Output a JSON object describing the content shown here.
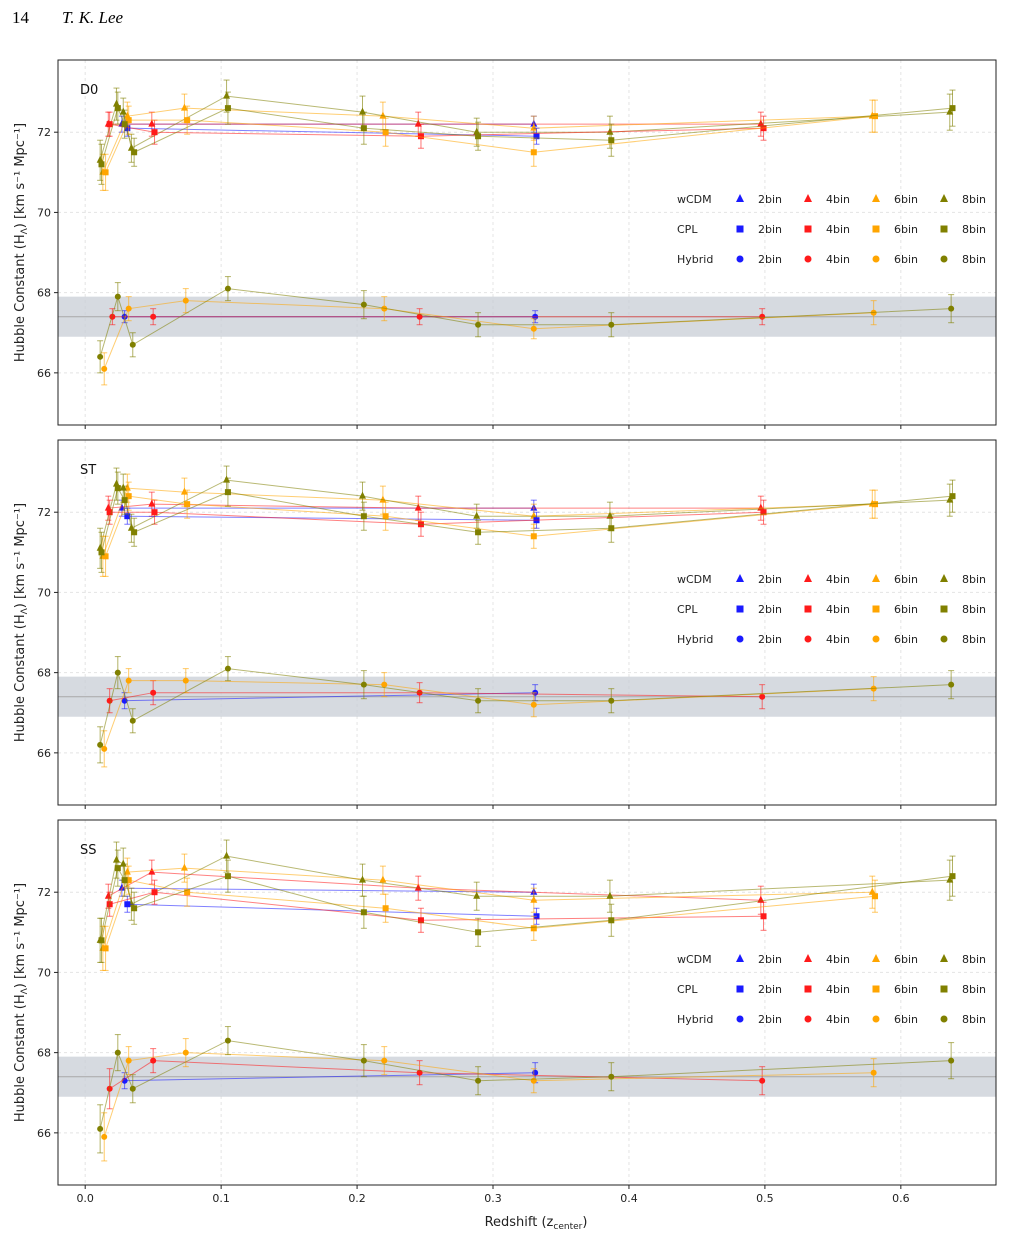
{
  "header": {
    "page_number": "14",
    "author": "T. K. Lee"
  },
  "chart_data": {
    "type": "scatter",
    "xlabel": "Redshift (z",
    "xlabel_sub": "center",
    "xlabel_end": ")",
    "ylabel": "Hubble Constant (H",
    "ylabel_sub": "Λ",
    "ylabel_end": ") [km s⁻¹ Mpc⁻¹]",
    "xlim": [
      -0.02,
      0.67
    ],
    "ylim": [
      64.7,
      73.8
    ],
    "xticks": [
      0.0,
      0.1,
      0.2,
      0.3,
      0.4,
      0.5,
      0.6
    ],
    "xtick_labels": [
      "0.0",
      "0.1",
      "0.2",
      "0.3",
      "0.4",
      "0.5",
      "0.6"
    ],
    "yticks": [
      66,
      68,
      70,
      72
    ],
    "ytick_labels": [
      "66",
      "68",
      "70",
      "72"
    ],
    "grid": true,
    "reference_band": [
      66.9,
      67.9
    ],
    "reference_line": 67.4,
    "colors": {
      "2bin": "#1a1aff",
      "4bin": "#ff1a1a",
      "6bin": "#ffa500",
      "8bin": "#808000",
      "band": "#c8ced6",
      "ref_line": "#a8a8a8"
    },
    "legend": {
      "placement": "right",
      "rows": [
        {
          "model": "wCDM",
          "marker": "triangle"
        },
        {
          "model": "CPL",
          "marker": "square"
        },
        {
          "model": "Hybrid",
          "marker": "circle"
        }
      ],
      "bins": [
        "2bin",
        "4bin",
        "6bin",
        "8bin"
      ]
    },
    "panels": [
      {
        "label": "D0",
        "series": [
          {
            "model": "wCDM",
            "bin": "2bin",
            "x": [
              0.027,
              0.33
            ],
            "y": [
              72.2,
              72.2
            ],
            "err": [
              0.2,
              0.2
            ]
          },
          {
            "model": "wCDM",
            "bin": "4bin",
            "x": [
              0.017,
              0.049,
              0.245,
              0.497
            ],
            "y": [
              72.2,
              72.2,
              72.2,
              72.2
            ],
            "err": [
              0.3,
              0.3,
              0.3,
              0.3
            ]
          },
          {
            "model": "wCDM",
            "bin": "6bin",
            "x": [
              0.013,
              0.031,
              0.073,
              0.219,
              0.33,
              0.579
            ],
            "y": [
              71.0,
              72.4,
              72.6,
              72.4,
              72.1,
              72.4
            ],
            "err": [
              0.45,
              0.35,
              0.35,
              0.35,
              0.3,
              0.4
            ]
          },
          {
            "model": "wCDM",
            "bin": "8bin",
            "x": [
              0.011,
              0.023,
              0.028,
              0.034,
              0.104,
              0.204,
              0.288,
              0.386,
              0.636
            ],
            "y": [
              71.3,
              72.7,
              72.5,
              71.6,
              72.9,
              72.5,
              72.0,
              72.0,
              72.5
            ],
            "err": [
              0.5,
              0.4,
              0.35,
              0.35,
              0.4,
              0.4,
              0.35,
              0.4,
              0.45
            ]
          },
          {
            "model": "CPL",
            "bin": "2bin",
            "x": [
              0.031,
              0.332
            ],
            "y": [
              72.1,
              71.9
            ],
            "err": [
              0.2,
              0.2
            ]
          },
          {
            "model": "CPL",
            "bin": "4bin",
            "x": [
              0.018,
              0.051,
              0.247,
              0.499
            ],
            "y": [
              72.2,
              72.0,
              71.9,
              72.1
            ],
            "err": [
              0.3,
              0.3,
              0.3,
              0.3
            ]
          },
          {
            "model": "CPL",
            "bin": "6bin",
            "x": [
              0.015,
              0.032,
              0.075,
              0.221,
              0.33,
              0.581
            ],
            "y": [
              71.0,
              72.3,
              72.3,
              72.0,
              71.5,
              72.4
            ],
            "err": [
              0.45,
              0.35,
              0.35,
              0.35,
              0.35,
              0.4
            ]
          },
          {
            "model": "CPL",
            "bin": "8bin",
            "x": [
              0.012,
              0.024,
              0.029,
              0.036,
              0.105,
              0.205,
              0.289,
              0.387,
              0.638
            ],
            "y": [
              71.2,
              72.6,
              72.2,
              71.5,
              72.6,
              72.1,
              71.9,
              71.8,
              72.6
            ],
            "err": [
              0.5,
              0.4,
              0.35,
              0.35,
              0.4,
              0.4,
              0.35,
              0.4,
              0.45
            ]
          },
          {
            "model": "Hybrid",
            "bin": "2bin",
            "x": [
              0.029,
              0.331
            ],
            "y": [
              67.4,
              67.4
            ],
            "err": [
              0.15,
              0.15
            ]
          },
          {
            "model": "Hybrid",
            "bin": "4bin",
            "x": [
              0.02,
              0.05,
              0.246,
              0.498
            ],
            "y": [
              67.4,
              67.4,
              67.4,
              67.4
            ],
            "err": [
              0.2,
              0.2,
              0.2,
              0.2
            ]
          },
          {
            "model": "Hybrid",
            "bin": "6bin",
            "x": [
              0.014,
              0.032,
              0.074,
              0.22,
              0.33,
              0.58
            ],
            "y": [
              66.1,
              67.6,
              67.8,
              67.6,
              67.1,
              67.5
            ],
            "err": [
              0.4,
              0.3,
              0.3,
              0.3,
              0.25,
              0.3
            ]
          },
          {
            "model": "Hybrid",
            "bin": "8bin",
            "x": [
              0.011,
              0.024,
              0.035,
              0.105,
              0.205,
              0.289,
              0.387,
              0.637
            ],
            "y": [
              66.4,
              67.9,
              66.7,
              68.1,
              67.7,
              67.2,
              67.2,
              67.6
            ],
            "err": [
              0.4,
              0.35,
              0.3,
              0.3,
              0.35,
              0.3,
              0.3,
              0.35
            ]
          }
        ]
      },
      {
        "label": "ST",
        "series": [
          {
            "model": "wCDM",
            "bin": "2bin",
            "x": [
              0.027,
              0.33
            ],
            "y": [
              72.1,
              72.1
            ],
            "err": [
              0.2,
              0.2
            ]
          },
          {
            "model": "wCDM",
            "bin": "4bin",
            "x": [
              0.017,
              0.049,
              0.245,
              0.497
            ],
            "y": [
              72.1,
              72.2,
              72.1,
              72.1
            ],
            "err": [
              0.3,
              0.3,
              0.3,
              0.3
            ]
          },
          {
            "model": "wCDM",
            "bin": "6bin",
            "x": [
              0.013,
              0.031,
              0.073,
              0.219,
              0.33,
              0.579
            ],
            "y": [
              70.9,
              72.6,
              72.5,
              72.3,
              71.9,
              72.2
            ],
            "err": [
              0.5,
              0.35,
              0.35,
              0.35,
              0.3,
              0.35
            ]
          },
          {
            "model": "wCDM",
            "bin": "8bin",
            "x": [
              0.011,
              0.023,
              0.028,
              0.034,
              0.104,
              0.204,
              0.288,
              0.386,
              0.636
            ],
            "y": [
              71.1,
              72.7,
              72.6,
              71.6,
              72.8,
              72.4,
              71.9,
              71.9,
              72.3
            ],
            "err": [
              0.5,
              0.4,
              0.35,
              0.35,
              0.35,
              0.35,
              0.3,
              0.35,
              0.4
            ]
          },
          {
            "model": "CPL",
            "bin": "2bin",
            "x": [
              0.031,
              0.332
            ],
            "y": [
              71.9,
              71.8
            ],
            "err": [
              0.2,
              0.2
            ]
          },
          {
            "model": "CPL",
            "bin": "4bin",
            "x": [
              0.018,
              0.051,
              0.247,
              0.499
            ],
            "y": [
              72.0,
              72.0,
              71.7,
              72.0
            ],
            "err": [
              0.3,
              0.3,
              0.3,
              0.3
            ]
          },
          {
            "model": "CPL",
            "bin": "6bin",
            "x": [
              0.015,
              0.032,
              0.075,
              0.221,
              0.33,
              0.581
            ],
            "y": [
              70.9,
              72.4,
              72.2,
              71.9,
              71.4,
              72.2
            ],
            "err": [
              0.5,
              0.35,
              0.35,
              0.35,
              0.3,
              0.35
            ]
          },
          {
            "model": "CPL",
            "bin": "8bin",
            "x": [
              0.012,
              0.024,
              0.029,
              0.036,
              0.105,
              0.205,
              0.289,
              0.387,
              0.638
            ],
            "y": [
              71.0,
              72.6,
              72.3,
              71.5,
              72.5,
              71.9,
              71.5,
              71.6,
              72.4
            ],
            "err": [
              0.5,
              0.4,
              0.35,
              0.35,
              0.35,
              0.35,
              0.3,
              0.35,
              0.4
            ]
          },
          {
            "model": "Hybrid",
            "bin": "2bin",
            "x": [
              0.029,
              0.331
            ],
            "y": [
              67.3,
              67.5
            ],
            "err": [
              0.2,
              0.2
            ]
          },
          {
            "model": "Hybrid",
            "bin": "4bin",
            "x": [
              0.018,
              0.05,
              0.246,
              0.498
            ],
            "y": [
              67.3,
              67.5,
              67.5,
              67.4
            ],
            "err": [
              0.3,
              0.3,
              0.25,
              0.3
            ]
          },
          {
            "model": "Hybrid",
            "bin": "6bin",
            "x": [
              0.014,
              0.032,
              0.074,
              0.22,
              0.33,
              0.58
            ],
            "y": [
              66.1,
              67.8,
              67.8,
              67.7,
              67.2,
              67.6
            ],
            "err": [
              0.45,
              0.3,
              0.3,
              0.3,
              0.3,
              0.3
            ]
          },
          {
            "model": "Hybrid",
            "bin": "8bin",
            "x": [
              0.011,
              0.024,
              0.035,
              0.105,
              0.205,
              0.289,
              0.387,
              0.637
            ],
            "y": [
              66.2,
              68.0,
              66.8,
              68.1,
              67.7,
              67.3,
              67.3,
              67.7
            ],
            "err": [
              0.45,
              0.4,
              0.3,
              0.3,
              0.35,
              0.3,
              0.3,
              0.35
            ]
          }
        ]
      },
      {
        "label": "SS",
        "series": [
          {
            "model": "wCDM",
            "bin": "2bin",
            "x": [
              0.027,
              0.33
            ],
            "y": [
              72.1,
              72.0
            ],
            "err": [
              0.2,
              0.2
            ]
          },
          {
            "model": "wCDM",
            "bin": "4bin",
            "x": [
              0.017,
              0.049,
              0.245,
              0.497
            ],
            "y": [
              71.9,
              72.5,
              72.1,
              71.8
            ],
            "err": [
              0.3,
              0.3,
              0.3,
              0.35
            ]
          },
          {
            "model": "wCDM",
            "bin": "6bin",
            "x": [
              0.013,
              0.031,
              0.073,
              0.219,
              0.33,
              0.579
            ],
            "y": [
              70.6,
              72.5,
              72.6,
              72.3,
              71.8,
              72.0
            ],
            "err": [
              0.55,
              0.35,
              0.35,
              0.35,
              0.3,
              0.4
            ]
          },
          {
            "model": "wCDM",
            "bin": "8bin",
            "x": [
              0.011,
              0.023,
              0.028,
              0.034,
              0.104,
              0.204,
              0.288,
              0.386,
              0.636
            ],
            "y": [
              70.8,
              72.8,
              72.7,
              71.7,
              72.9,
              72.3,
              71.9,
              71.9,
              72.3
            ],
            "err": [
              0.55,
              0.45,
              0.4,
              0.4,
              0.4,
              0.4,
              0.35,
              0.4,
              0.5
            ]
          },
          {
            "model": "CPL",
            "bin": "2bin",
            "x": [
              0.031,
              0.332
            ],
            "y": [
              71.7,
              71.4
            ],
            "err": [
              0.2,
              0.2
            ]
          },
          {
            "model": "CPL",
            "bin": "4bin",
            "x": [
              0.018,
              0.051,
              0.247,
              0.499
            ],
            "y": [
              71.7,
              72.0,
              71.3,
              71.4
            ],
            "err": [
              0.3,
              0.3,
              0.3,
              0.35
            ]
          },
          {
            "model": "CPL",
            "bin": "6bin",
            "x": [
              0.015,
              0.032,
              0.075,
              0.221,
              0.33,
              0.581
            ],
            "y": [
              70.6,
              72.3,
              72.0,
              71.6,
              71.1,
              71.9
            ],
            "err": [
              0.55,
              0.35,
              0.35,
              0.35,
              0.3,
              0.4
            ]
          },
          {
            "model": "CPL",
            "bin": "8bin",
            "x": [
              0.012,
              0.024,
              0.029,
              0.036,
              0.105,
              0.205,
              0.289,
              0.387,
              0.638
            ],
            "y": [
              70.8,
              72.6,
              72.3,
              71.6,
              72.4,
              71.5,
              71.0,
              71.3,
              72.4
            ],
            "err": [
              0.55,
              0.45,
              0.4,
              0.4,
              0.4,
              0.4,
              0.35,
              0.4,
              0.5
            ]
          },
          {
            "model": "Hybrid",
            "bin": "2bin",
            "x": [
              0.029,
              0.331
            ],
            "y": [
              67.3,
              67.5
            ],
            "err": [
              0.2,
              0.25
            ]
          },
          {
            "model": "Hybrid",
            "bin": "4bin",
            "x": [
              0.018,
              0.05,
              0.246,
              0.498
            ],
            "y": [
              67.1,
              67.8,
              67.5,
              67.3
            ],
            "err": [
              0.5,
              0.3,
              0.3,
              0.35
            ]
          },
          {
            "model": "Hybrid",
            "bin": "6bin",
            "x": [
              0.014,
              0.032,
              0.074,
              0.22,
              0.33,
              0.58
            ],
            "y": [
              65.9,
              67.8,
              68.0,
              67.8,
              67.3,
              67.5
            ],
            "err": [
              0.6,
              0.35,
              0.35,
              0.35,
              0.3,
              0.35
            ]
          },
          {
            "model": "Hybrid",
            "bin": "8bin",
            "x": [
              0.011,
              0.024,
              0.035,
              0.105,
              0.205,
              0.289,
              0.387,
              0.637
            ],
            "y": [
              66.1,
              68.0,
              67.1,
              68.3,
              67.8,
              67.3,
              67.4,
              67.8
            ],
            "err": [
              0.6,
              0.45,
              0.35,
              0.35,
              0.4,
              0.35,
              0.35,
              0.45
            ]
          }
        ]
      }
    ]
  }
}
